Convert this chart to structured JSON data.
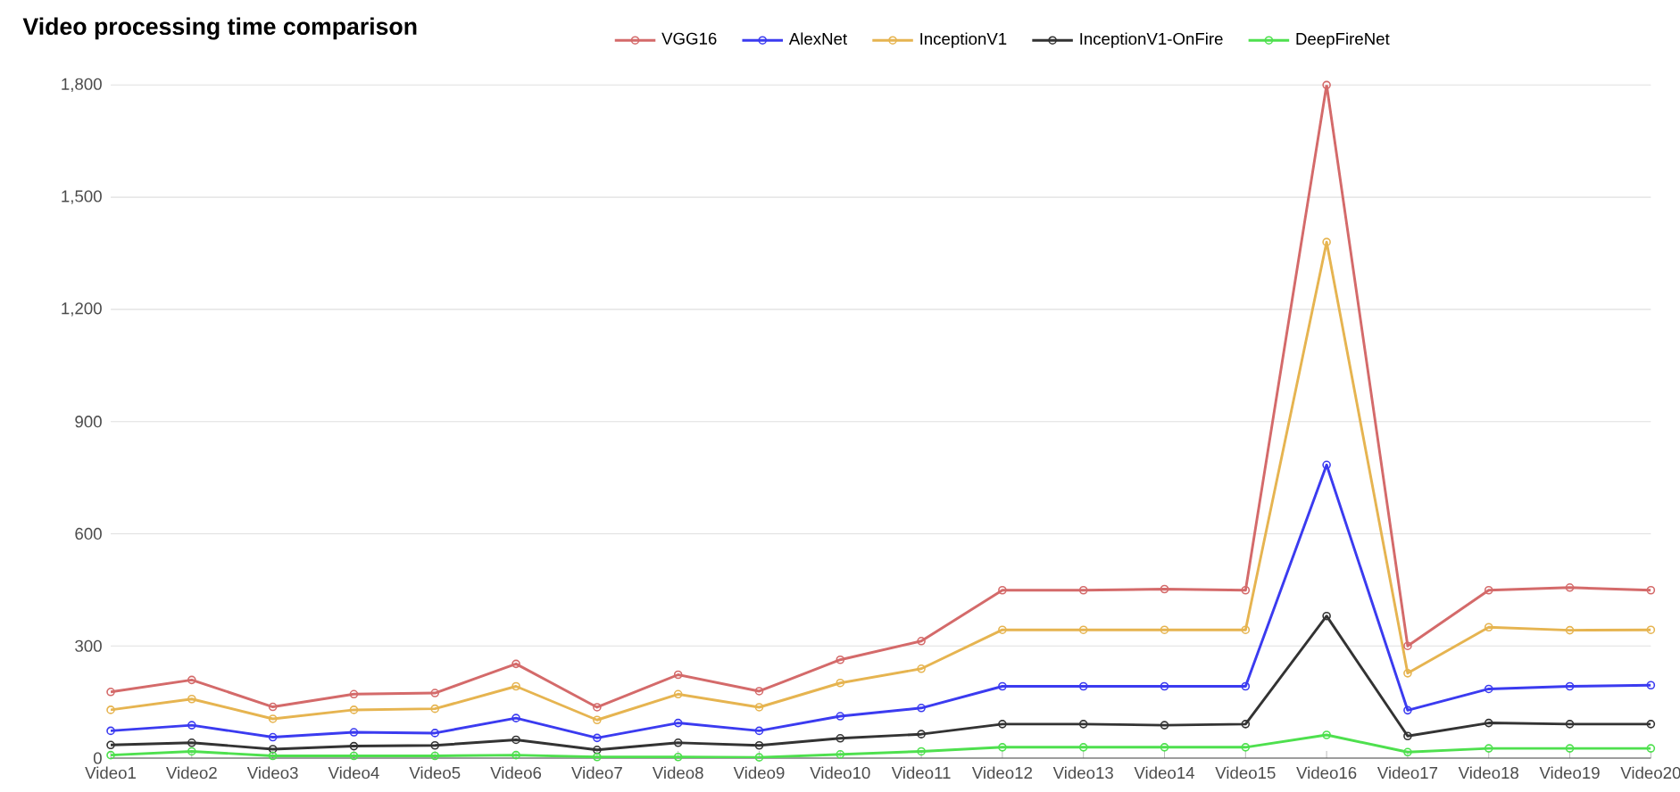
{
  "chart_data": {
    "type": "line",
    "title": "Video processing time comparison",
    "categories": [
      "Video1",
      "Video2",
      "Video3",
      "Video4",
      "Video5",
      "Video6",
      "Video7",
      "Video8",
      "Video9",
      "Video10",
      "Video11",
      "Video12",
      "Video13",
      "Video14",
      "Video15",
      "Video16",
      "Video17",
      "Video18",
      "Video19",
      "Video20"
    ],
    "series": [
      {
        "name": "VGG16",
        "color": "#d46a6a",
        "values": [
          177,
          209,
          137,
          171,
          174,
          252,
          136,
          223,
          179,
          263,
          313,
          449,
          449,
          452,
          449,
          1800,
          300,
          449,
          456,
          449
        ]
      },
      {
        "name": "AlexNet",
        "color": "#3b3bf0",
        "values": [
          73,
          88,
          56,
          69,
          67,
          107,
          54,
          94,
          73,
          112,
          134,
          192,
          192,
          192,
          192,
          784,
          128,
          185,
          192,
          195
        ]
      },
      {
        "name": "InceptionV1",
        "color": "#e6b450",
        "values": [
          129,
          158,
          105,
          129,
          132,
          192,
          102,
          171,
          136,
          201,
          239,
          343,
          343,
          343,
          343,
          1380,
          227,
          350,
          342,
          343
        ]
      },
      {
        "name": "InceptionV1-OnFire",
        "color": "#333333",
        "values": [
          35,
          41,
          24,
          32,
          34,
          49,
          22,
          41,
          34,
          53,
          64,
          91,
          91,
          88,
          91,
          380,
          59,
          94,
          91,
          91
        ]
      },
      {
        "name": "DeepFireNet",
        "color": "#4ee04e",
        "values": [
          8,
          18,
          6,
          6,
          6,
          8,
          3,
          3,
          2,
          10,
          18,
          29,
          29,
          29,
          29,
          62,
          16,
          26,
          26,
          26
        ]
      }
    ],
    "ylim": [
      0,
      1800
    ],
    "yticks": [
      0,
      300,
      600,
      900,
      {
        "value": 1200,
        "label": "1,200"
      },
      {
        "value": 1500,
        "label": "1,500"
      },
      {
        "value": 1800,
        "label": "1,800"
      }
    ],
    "grid": "y",
    "legend": "top",
    "marker": "circle",
    "line_style": "solid"
  }
}
